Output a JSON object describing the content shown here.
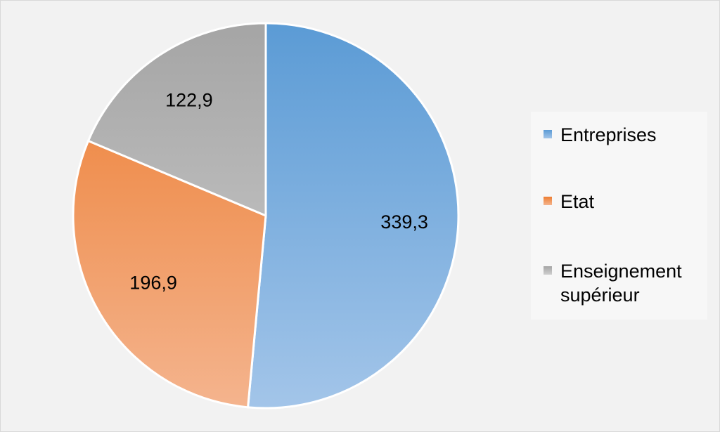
{
  "chart_data": {
    "type": "pie",
    "slices": [
      {
        "label": "Entreprises",
        "value": 339.3,
        "value_label": "339,3",
        "color": "#5b9bd5",
        "color_light": "#a3c5e9"
      },
      {
        "label": "Etat",
        "value": 196.9,
        "value_label": "196,9",
        "color": "#ed7d31",
        "color_light": "#f4b48e"
      },
      {
        "label": "Enseignement supérieur",
        "value": 122.9,
        "value_label": "122,9",
        "color": "#a5a5a5",
        "color_light": "#cfcfcf"
      }
    ],
    "legend_position": "right",
    "start": "top, clockwise"
  },
  "legend": {
    "items": [
      {
        "label": "Entreprises"
      },
      {
        "label": "Etat"
      },
      {
        "label": "Enseignement supérieur"
      }
    ]
  }
}
